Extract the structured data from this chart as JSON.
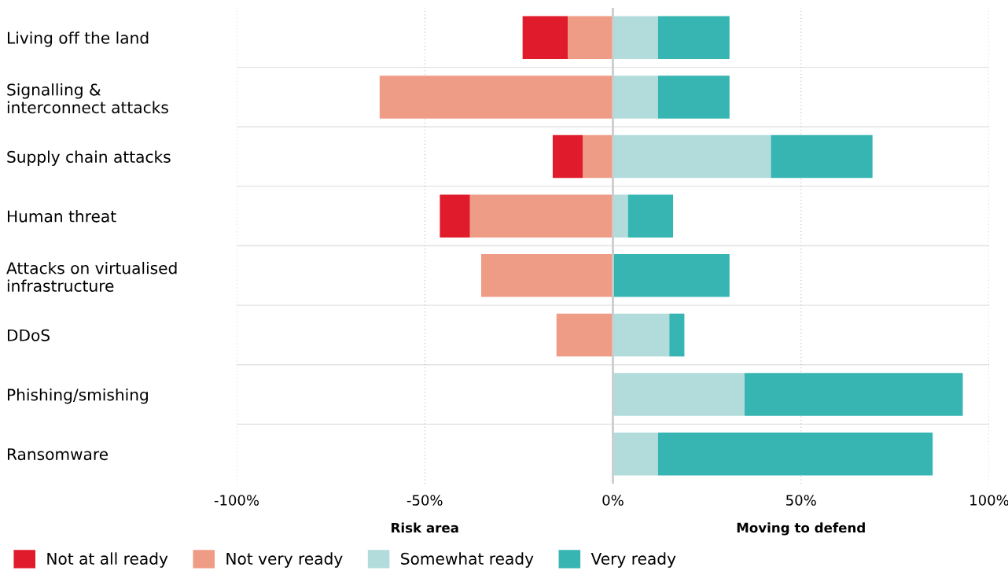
{
  "chart_data": {
    "type": "bar",
    "orientation": "horizontal",
    "stacked": true,
    "categories": [
      "Living off the land",
      "Signalling &\ninterconnect attacks",
      "Supply chain attacks",
      "Human threat",
      "Attacks on virtualised\ninfrastructure",
      "DDoS",
      "Phishing/smishing",
      "Ransomware"
    ],
    "series": [
      {
        "name": "Not very ready",
        "color": "#ef9c86",
        "values": [
          -12,
          -62,
          -8,
          -38,
          -35,
          -15,
          0,
          0
        ]
      },
      {
        "name": "Not at all ready",
        "color": "#e01b2b",
        "values": [
          -12,
          0,
          -8,
          -8,
          0,
          0,
          0,
          0
        ]
      },
      {
        "name": "Somewhat ready",
        "color": "#b2dcdb",
        "values": [
          12,
          12,
          42,
          4,
          0,
          15,
          35,
          12
        ]
      },
      {
        "name": "Very ready",
        "color": "#37b5b3",
        "values": [
          19,
          19,
          27,
          12,
          31,
          4,
          58,
          73
        ]
      }
    ],
    "xlim": [
      -100,
      100
    ],
    "xticks": [
      {
        "value": -100,
        "label": "-100%"
      },
      {
        "value": -50,
        "label": "-50%"
      },
      {
        "value": 0,
        "label": "0%"
      },
      {
        "value": 50,
        "label": "50%"
      },
      {
        "value": 100,
        "label": "100%"
      }
    ],
    "ref_lines": [
      {
        "axis": "x",
        "value": 0,
        "label": null,
        "color": "#cccccc"
      }
    ],
    "annotations": [
      "Risk area",
      "Moving to defend"
    ],
    "grid": "x",
    "legend": "bottom"
  }
}
